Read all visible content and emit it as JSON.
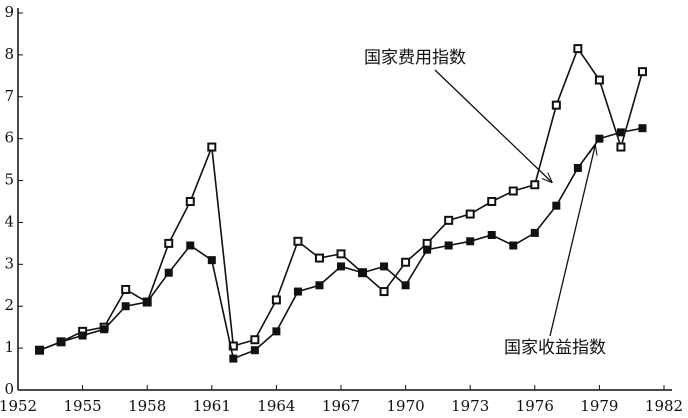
{
  "chart_data": {
    "type": "line",
    "x": [
      1953,
      1954,
      1955,
      1956,
      1957,
      1958,
      1959,
      1960,
      1961,
      1962,
      1963,
      1964,
      1965,
      1966,
      1967,
      1968,
      1969,
      1970,
      1971,
      1972,
      1973,
      1974,
      1975,
      1976,
      1977,
      1978,
      1979,
      1980,
      1981
    ],
    "series": [
      {
        "name": "国家费用指数",
        "color": "#111111",
        "marker": "hollow-square",
        "values": [
          0.95,
          1.15,
          1.4,
          1.5,
          2.4,
          2.1,
          3.5,
          4.5,
          5.8,
          1.05,
          1.2,
          2.15,
          3.55,
          3.15,
          3.25,
          2.8,
          2.35,
          3.05,
          3.5,
          4.05,
          4.2,
          4.5,
          4.75,
          4.9,
          6.8,
          8.15,
          7.4,
          5.8,
          7.6
        ]
      },
      {
        "name": "国家收益指数",
        "color": "#111111",
        "marker": "filled-square",
        "values": [
          0.95,
          1.15,
          1.3,
          1.45,
          2.0,
          2.1,
          2.8,
          3.45,
          3.1,
          0.75,
          0.95,
          1.4,
          2.35,
          2.5,
          2.95,
          2.8,
          2.95,
          2.5,
          3.35,
          3.45,
          3.55,
          3.7,
          3.45,
          3.75,
          4.4,
          5.3,
          6.0,
          6.15,
          6.25
        ]
      }
    ],
    "xlim": [
      1952,
      1982
    ],
    "xticks": [
      1952,
      1955,
      1958,
      1961,
      1964,
      1967,
      1970,
      1973,
      1976,
      1979,
      1982
    ],
    "ylim": [
      0,
      9
    ],
    "yticks": [
      0,
      1,
      2,
      3,
      4,
      5,
      6,
      7,
      8,
      9
    ],
    "grid": false,
    "annotations": [
      {
        "text": "国家费用指数",
        "x": 1977,
        "y": 4.9
      },
      {
        "text": "国家收益指数",
        "x": 1979,
        "y": 6.0
      }
    ]
  }
}
